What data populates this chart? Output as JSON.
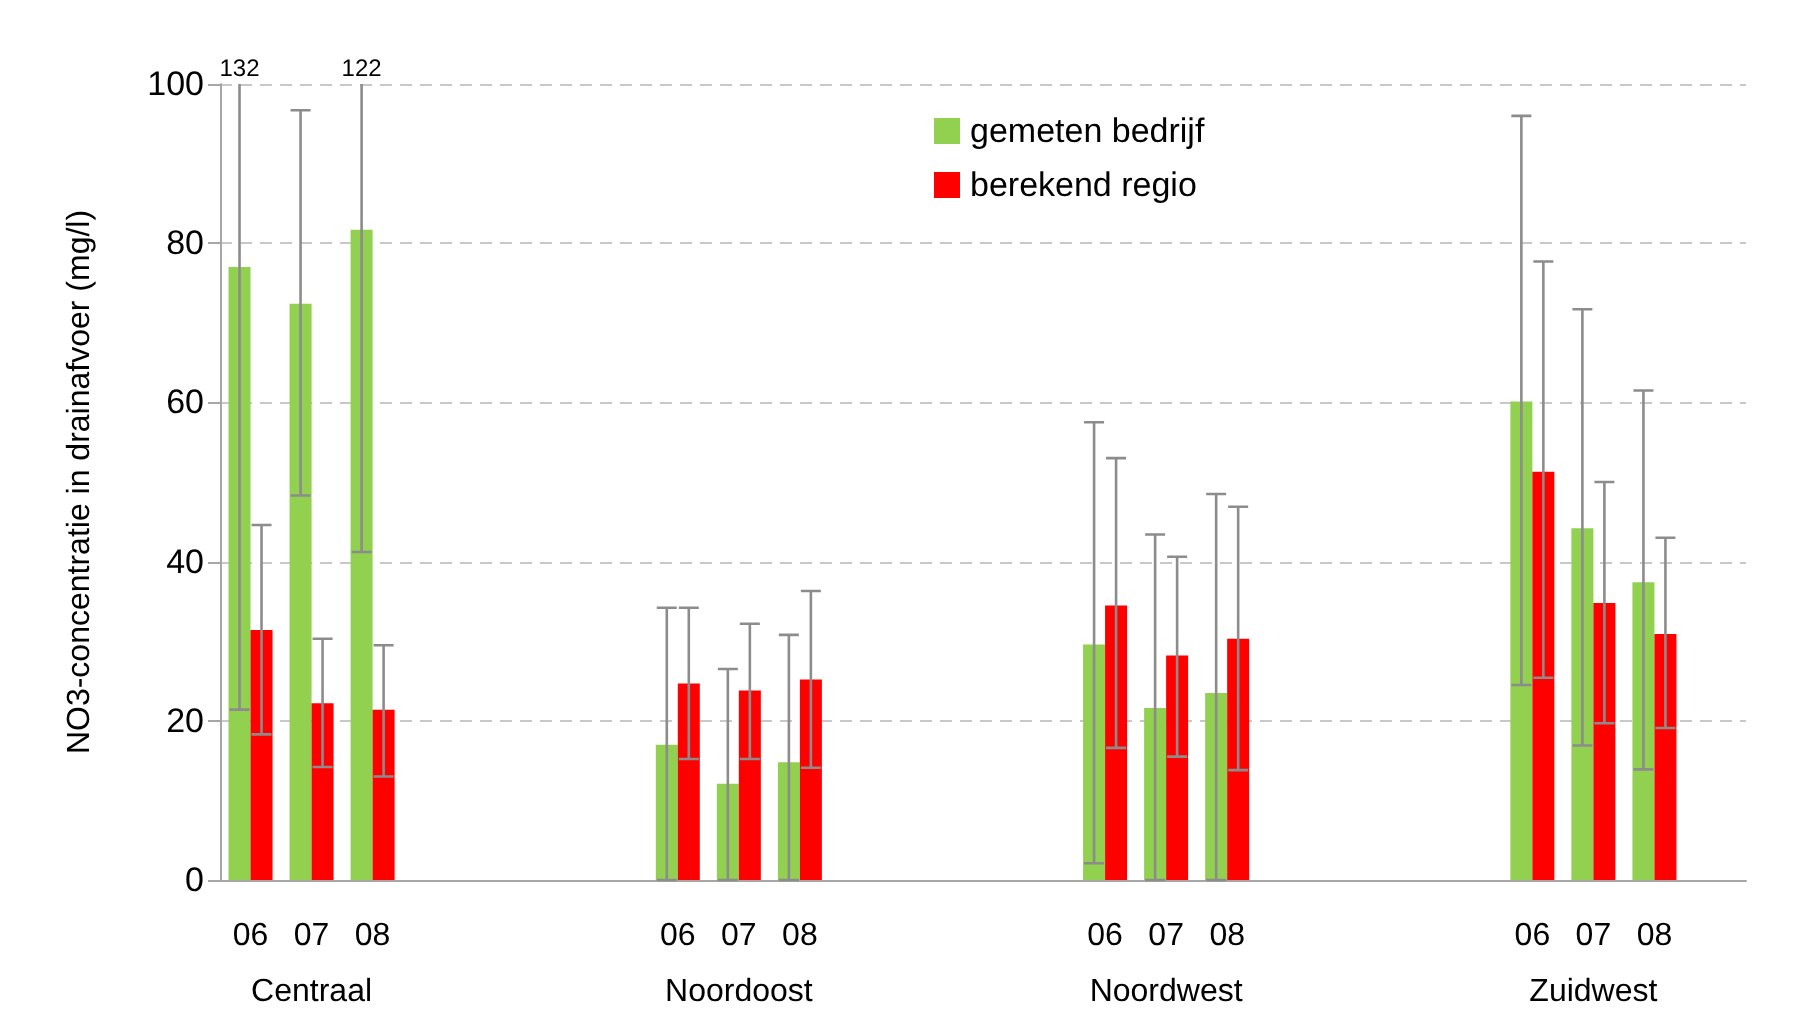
{
  "chart_data": {
    "type": "bar",
    "ylabel": "NO3-concentratie in drainafvoer (mg/l)",
    "categories": [
      "06",
      "07",
      "08",
      null,
      null,
      null,
      null,
      "06",
      "07",
      "08",
      null,
      null,
      null,
      null,
      "06",
      "07",
      "08",
      null,
      null,
      null,
      null,
      "06",
      "07",
      "08",
      null
    ],
    "series": [
      {
        "name": "gemeten bedrijf",
        "color": "#92d050",
        "values": [
          77,
          72.4,
          81.7,
          null,
          null,
          null,
          null,
          17,
          12.1,
          14.8,
          null,
          null,
          null,
          null,
          29.6,
          21.6,
          23.5,
          null,
          null,
          null,
          null,
          60.1,
          44.2,
          37.4,
          null
        ],
        "errors": [
          [
            21.4,
            100
          ],
          [
            48.3,
            96.7
          ],
          [
            41.2,
            100
          ],
          null,
          null,
          null,
          null,
          [
            0,
            34.2
          ],
          [
            0,
            26.5
          ],
          [
            0,
            30.8
          ],
          null,
          null,
          null,
          null,
          [
            2.1,
            57.5
          ],
          [
            0,
            43.4
          ],
          [
            0,
            48.5
          ],
          null,
          null,
          null,
          null,
          [
            24.5,
            96
          ],
          [
            16.9,
            71.7
          ],
          [
            13.9,
            61.5
          ],
          null
        ]
      },
      {
        "name": "berekend regio",
        "color": "#ff0000",
        "values": [
          31.4,
          22.2,
          21.4,
          null,
          null,
          null,
          null,
          24.7,
          23.8,
          25.2,
          null,
          null,
          null,
          null,
          34.5,
          28.2,
          30.3,
          null,
          null,
          null,
          null,
          51.3,
          34.8,
          30.9,
          null
        ],
        "errors": [
          [
            18.3,
            44.6
          ],
          [
            14.2,
            30.3
          ],
          [
            13,
            29.5
          ],
          null,
          null,
          null,
          null,
          [
            15.2,
            34.2
          ],
          [
            15.2,
            32.2
          ],
          [
            14.1,
            36.3
          ],
          null,
          null,
          null,
          null,
          [
            16.6,
            53
          ],
          [
            15.5,
            40.6
          ],
          [
            13.8,
            46.9
          ],
          null,
          null,
          null,
          null,
          [
            25.4,
            77.7
          ],
          [
            19.7,
            50
          ],
          [
            19.1,
            43
          ],
          null
        ]
      }
    ],
    "ylim": [
      0,
      100
    ],
    "yticks": [
      0,
      20,
      40,
      60,
      80,
      100
    ],
    "grid": "y",
    "legend": "top",
    "annotations": [
      "132",
      "122",
      "Centraal",
      "Noordoost",
      "Noordwest",
      "Zuidwest"
    ]
  }
}
